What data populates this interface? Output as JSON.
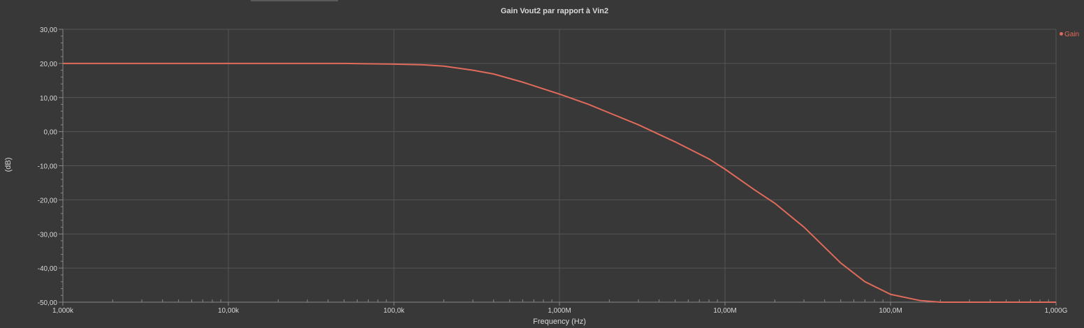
{
  "colors": {
    "background": "#383838",
    "grid": "#555555",
    "axis": "#888888",
    "text": "#d8d8d8",
    "series": "#e06b5b"
  },
  "chart_data": {
    "type": "line",
    "title": "Gain Vout2 par rapport à Vin2",
    "xlabel": "Frequency (Hz)",
    "ylabel": "(dB)",
    "xscale": "log",
    "xlim": [
      1000,
      1000000000
    ],
    "ylim": [
      -50,
      30
    ],
    "grid": true,
    "legend_position": "top-right",
    "x_ticks": [
      {
        "value": 1000,
        "label": "1,000k"
      },
      {
        "value": 10000,
        "label": "10,00k"
      },
      {
        "value": 100000,
        "label": "100,0k"
      },
      {
        "value": 1000000,
        "label": "1,000M"
      },
      {
        "value": 10000000,
        "label": "10,00M"
      },
      {
        "value": 100000000,
        "label": "100,0M"
      },
      {
        "value": 1000000000,
        "label": "1,000G"
      }
    ],
    "y_ticks": [
      {
        "value": 30,
        "label": "30,00"
      },
      {
        "value": 20,
        "label": "20,00"
      },
      {
        "value": 10,
        "label": "10,00"
      },
      {
        "value": 0,
        "label": "0,00"
      },
      {
        "value": -10,
        "label": "-10,00"
      },
      {
        "value": -20,
        "label": "-20,00"
      },
      {
        "value": -30,
        "label": "-30,00"
      },
      {
        "value": -40,
        "label": "-40,00"
      },
      {
        "value": -50,
        "label": "-50,00"
      }
    ],
    "series": [
      {
        "name": "Gain",
        "color": "#e06b5b",
        "x": [
          1000,
          10000,
          50000,
          100000,
          150000,
          200000,
          300000,
          400000,
          600000,
          1000000,
          1500000,
          2000000,
          3000000,
          5000000,
          8000000,
          10000000,
          15000000,
          20000000,
          30000000,
          50000000,
          70000000,
          100000000,
          150000000,
          200000000,
          300000000,
          1000000000
        ],
        "y": [
          20,
          20,
          20,
          19.8,
          19.6,
          19.2,
          18,
          16.9,
          14.5,
          11,
          8,
          5.5,
          2,
          -3,
          -8,
          -11,
          -17,
          -21,
          -28,
          -38.5,
          -44,
          -47.7,
          -49.5,
          -50,
          -50,
          -50
        ]
      }
    ]
  }
}
